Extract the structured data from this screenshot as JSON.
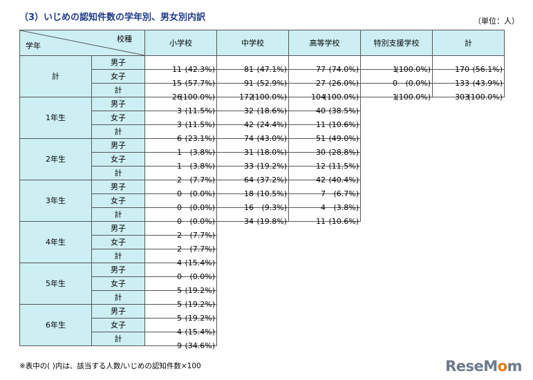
{
  "title": "（3）いじめの認知件数の学年別、男女別内訳",
  "unit": "（単位：人）",
  "corner": {
    "top": "校種",
    "bottom": "学年"
  },
  "columns": [
    "小学校",
    "中学校",
    "高等学校",
    "特別支援学校",
    "計"
  ],
  "sex_labels": [
    "男子",
    "女子",
    "計"
  ],
  "groups": [
    {
      "grade": "計",
      "rows": [
        [
          [
            "11",
            "(42.3%)"
          ],
          [
            "81",
            "(47.1%)"
          ],
          [
            "77",
            "(74.0%)"
          ],
          [
            "1",
            "(100.0%)"
          ],
          [
            "170",
            "(56.1%)"
          ]
        ],
        [
          [
            "15",
            "(57.7%)"
          ],
          [
            "91",
            "(52.9%)"
          ],
          [
            "27",
            "(26.0%)"
          ],
          [
            "0",
            "(0.0%)"
          ],
          [
            "133",
            "(43.9%)"
          ]
        ],
        [
          [
            "26",
            "(100.0%)"
          ],
          [
            "172",
            "(100.0%)"
          ],
          [
            "104",
            "(100.0%)"
          ],
          [
            "1",
            "(100.0%)"
          ],
          [
            "303",
            "(100.0%)"
          ]
        ]
      ]
    },
    {
      "grade": "1年生",
      "rows": [
        [
          [
            "3",
            "(11.5%)"
          ],
          [
            "32",
            "(18.6%)"
          ],
          [
            "40",
            "(38.5%)"
          ]
        ],
        [
          [
            "3",
            "(11.5%)"
          ],
          [
            "42",
            "(24.4%)"
          ],
          [
            "11",
            "(10.6%)"
          ]
        ],
        [
          [
            "6",
            "(23.1%)"
          ],
          [
            "74",
            "(43.0%)"
          ],
          [
            "51",
            "(49.0%)"
          ]
        ]
      ]
    },
    {
      "grade": "2年生",
      "rows": [
        [
          [
            "1",
            "(3.8%)"
          ],
          [
            "31",
            "(18.0%)"
          ],
          [
            "30",
            "(28.8%)"
          ]
        ],
        [
          [
            "1",
            "(3.8%)"
          ],
          [
            "33",
            "(19.2%)"
          ],
          [
            "12",
            "(11.5%)"
          ]
        ],
        [
          [
            "2",
            "(7.7%)"
          ],
          [
            "64",
            "(37.2%)"
          ],
          [
            "42",
            "(40.4%)"
          ]
        ]
      ]
    },
    {
      "grade": "3年生",
      "rows": [
        [
          [
            "0",
            "(0.0%)"
          ],
          [
            "18",
            "(10.5%)"
          ],
          [
            "7",
            "(6.7%)"
          ]
        ],
        [
          [
            "0",
            "(0.0%)"
          ],
          [
            "16",
            "(9.3%)"
          ],
          [
            "4",
            "(3.8%)"
          ]
        ],
        [
          [
            "0",
            "(0.0%)"
          ],
          [
            "34",
            "(19.8%)"
          ],
          [
            "11",
            "(10.6%)"
          ]
        ]
      ]
    },
    {
      "grade": "4年生",
      "rows": [
        [
          [
            "2",
            "(7.7%)"
          ]
        ],
        [
          [
            "2",
            "(7.7%)"
          ]
        ],
        [
          [
            "4",
            "(15.4%)"
          ]
        ]
      ]
    },
    {
      "grade": "5年生",
      "rows": [
        [
          [
            "0",
            "(0.0%)"
          ]
        ],
        [
          [
            "5",
            "(19.2%)"
          ]
        ],
        [
          [
            "5",
            "(19.2%)"
          ]
        ]
      ]
    },
    {
      "grade": "6年生",
      "rows": [
        [
          [
            "5",
            "(19.2%)"
          ]
        ],
        [
          [
            "4",
            "(15.4%)"
          ]
        ],
        [
          [
            "9",
            "(34.6%)"
          ]
        ]
      ]
    }
  ],
  "footnote": "※表中の( )内は、該当する人数/いじめの認知件数×100",
  "logo": {
    "part1": "ReseM",
    "part2": "o",
    "part3": "m"
  }
}
